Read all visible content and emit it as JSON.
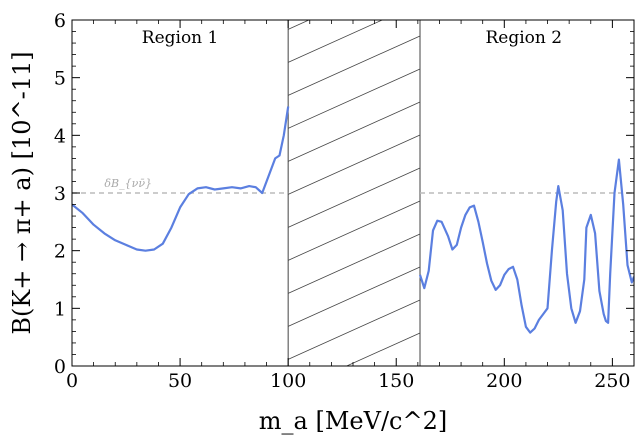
{
  "chart_data": {
    "type": "line",
    "xlabel": "m_a [MeV/c^2]",
    "ylabel": "B(K+ → π+ a) [10^-11]",
    "xlim": [
      0,
      260
    ],
    "ylim": [
      0,
      6
    ],
    "x_ticks": [
      "0",
      "50",
      "100",
      "150",
      "200",
      "250"
    ],
    "y_ticks": [
      "0",
      "1",
      "2",
      "3",
      "4",
      "5",
      "6"
    ],
    "grid": false,
    "legend": "none",
    "excluded_band": [
      100,
      161
    ],
    "reference_line": {
      "label": "δB_{νν̄}",
      "y": 3.0,
      "color": "#bbbbbb"
    },
    "annotations": [
      {
        "text": "Region 1",
        "x": 50,
        "y": 5.6
      },
      {
        "text": "Region 2",
        "x": 209,
        "y": 5.6
      }
    ],
    "series": [
      {
        "color": "#5b7fe0",
        "segments": [
          [
            [
              0,
              2.8
            ],
            [
              5,
              2.65
            ],
            [
              10,
              2.45
            ],
            [
              15,
              2.3
            ],
            [
              20,
              2.18
            ],
            [
              25,
              2.1
            ],
            [
              30,
              2.02
            ],
            [
              34,
              2.0
            ],
            [
              38,
              2.02
            ],
            [
              42,
              2.12
            ],
            [
              46,
              2.4
            ],
            [
              50,
              2.75
            ],
            [
              54,
              2.98
            ],
            [
              58,
              3.08
            ],
            [
              62,
              3.1
            ],
            [
              66,
              3.06
            ],
            [
              70,
              3.08
            ],
            [
              74,
              3.1
            ],
            [
              78,
              3.08
            ],
            [
              82,
              3.12
            ],
            [
              85,
              3.1
            ],
            [
              88,
              3.0
            ],
            [
              91,
              3.3
            ],
            [
              94,
              3.6
            ],
            [
              96,
              3.65
            ],
            [
              98,
              4.0
            ],
            [
              100,
              4.5
            ]
          ],
          [
            [
              161,
              1.58
            ],
            [
              163,
              1.35
            ],
            [
              165,
              1.65
            ],
            [
              167,
              2.35
            ],
            [
              169,
              2.52
            ],
            [
              171,
              2.5
            ],
            [
              174,
              2.25
            ],
            [
              176,
              2.02
            ],
            [
              178,
              2.1
            ],
            [
              180,
              2.4
            ],
            [
              182,
              2.62
            ],
            [
              184,
              2.75
            ],
            [
              186,
              2.78
            ],
            [
              188,
              2.5
            ],
            [
              190,
              2.15
            ],
            [
              192,
              1.78
            ],
            [
              194,
              1.48
            ],
            [
              196,
              1.32
            ],
            [
              198,
              1.4
            ],
            [
              200,
              1.58
            ],
            [
              202,
              1.68
            ],
            [
              204,
              1.72
            ],
            [
              206,
              1.5
            ],
            [
              208,
              1.05
            ],
            [
              210,
              0.68
            ],
            [
              212,
              0.58
            ],
            [
              214,
              0.65
            ],
            [
              216,
              0.8
            ],
            [
              218,
              0.9
            ],
            [
              220,
              1.0
            ],
            [
              222,
              2.0
            ],
            [
              224,
              2.85
            ],
            [
              225,
              3.12
            ],
            [
              227,
              2.7
            ],
            [
              229,
              1.6
            ],
            [
              231,
              1.0
            ],
            [
              233,
              0.75
            ],
            [
              235,
              0.95
            ],
            [
              237,
              1.5
            ],
            [
              238,
              2.4
            ],
            [
              240,
              2.62
            ],
            [
              242,
              2.3
            ],
            [
              244,
              1.3
            ],
            [
              246,
              0.9
            ],
            [
              247,
              0.78
            ],
            [
              248,
              0.75
            ],
            [
              249,
              1.6
            ],
            [
              251,
              3.0
            ],
            [
              253,
              3.58
            ],
            [
              255,
              2.8
            ],
            [
              257,
              1.75
            ],
            [
              259,
              1.45
            ],
            [
              260,
              1.55
            ]
          ]
        ]
      }
    ]
  }
}
